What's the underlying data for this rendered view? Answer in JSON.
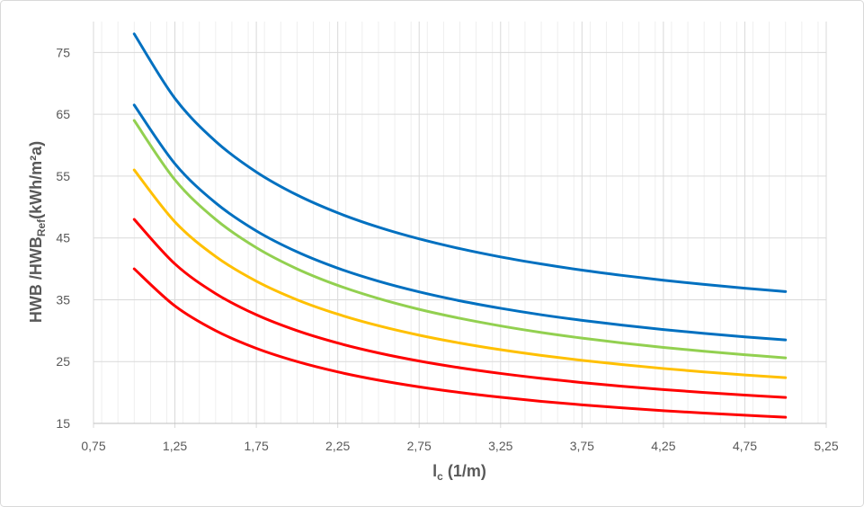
{
  "chart_data": {
    "type": "line",
    "title": "",
    "xlabel": {
      "main": "l",
      "sub": "c",
      "rest": " (1/m)"
    },
    "ylabel": {
      "main": "HWB /HWB",
      "sub": "Ref",
      "rest": "(kWh/m²a)"
    },
    "xlim": [
      0.75,
      5.25
    ],
    "ylim": [
      15,
      80
    ],
    "x_ticks": [
      "0,75",
      "1,25",
      "1,75",
      "2,25",
      "2,75",
      "3,25",
      "3,75",
      "4,25",
      "4,75",
      "5,25"
    ],
    "x_tick_values": [
      0.75,
      1.25,
      1.75,
      2.25,
      2.75,
      3.25,
      3.75,
      4.25,
      4.75,
      5.25
    ],
    "y_ticks": [
      "15",
      "25",
      "35",
      "45",
      "55",
      "65",
      "75"
    ],
    "y_tick_values": [
      15,
      25,
      35,
      45,
      55,
      65,
      75
    ],
    "grid": true,
    "legend": "none",
    "x": [
      1,
      1.25,
      1.5,
      1.75,
      2,
      2.25,
      2.5,
      2.75,
      3,
      3.25,
      3.5,
      3.75,
      4,
      4.25,
      4.5,
      4.75,
      5
    ],
    "series": [
      {
        "name": "series-1",
        "color": "#0070C0",
        "values": [
          78,
          67.58,
          60.63,
          55.67,
          51.95,
          49.06,
          46.74,
          44.85,
          43.27,
          41.93,
          40.79,
          39.79,
          38.93,
          38.16,
          37.48,
          36.87,
          36.32
        ]
      },
      {
        "name": "series-2",
        "color": "#0070C0",
        "values": [
          66.5,
          57,
          50.67,
          46.14,
          42.75,
          40.11,
          38,
          36.27,
          34.83,
          33.62,
          32.57,
          31.67,
          30.88,
          30.18,
          29.56,
          29,
          28.5
        ]
      },
      {
        "name": "series-3",
        "color": "#92D050",
        "values": [
          64,
          54.4,
          48,
          43.43,
          40,
          37.33,
          35.2,
          33.45,
          32,
          30.77,
          29.71,
          28.8,
          28,
          27.29,
          26.67,
          26.11,
          25.6
        ]
      },
      {
        "name": "series-4",
        "color": "#FFC000",
        "values": [
          56,
          47.6,
          42,
          38,
          35,
          32.67,
          30.8,
          29.27,
          28,
          26.92,
          26,
          25.2,
          24.5,
          23.88,
          23.33,
          22.84,
          22.4
        ]
      },
      {
        "name": "series-5",
        "color": "#FF0000",
        "values": [
          48,
          40.8,
          36,
          32.57,
          30,
          28,
          26.4,
          25.09,
          24,
          23.08,
          22.29,
          21.6,
          21,
          20.47,
          20,
          19.58,
          19.2
        ]
      },
      {
        "name": "series-6",
        "color": "#FF0000",
        "values": [
          40,
          34,
          30,
          27.14,
          25,
          23.33,
          22,
          20.91,
          20,
          19.23,
          18.57,
          18,
          17.5,
          17.06,
          16.67,
          16.32,
          16
        ]
      }
    ]
  }
}
